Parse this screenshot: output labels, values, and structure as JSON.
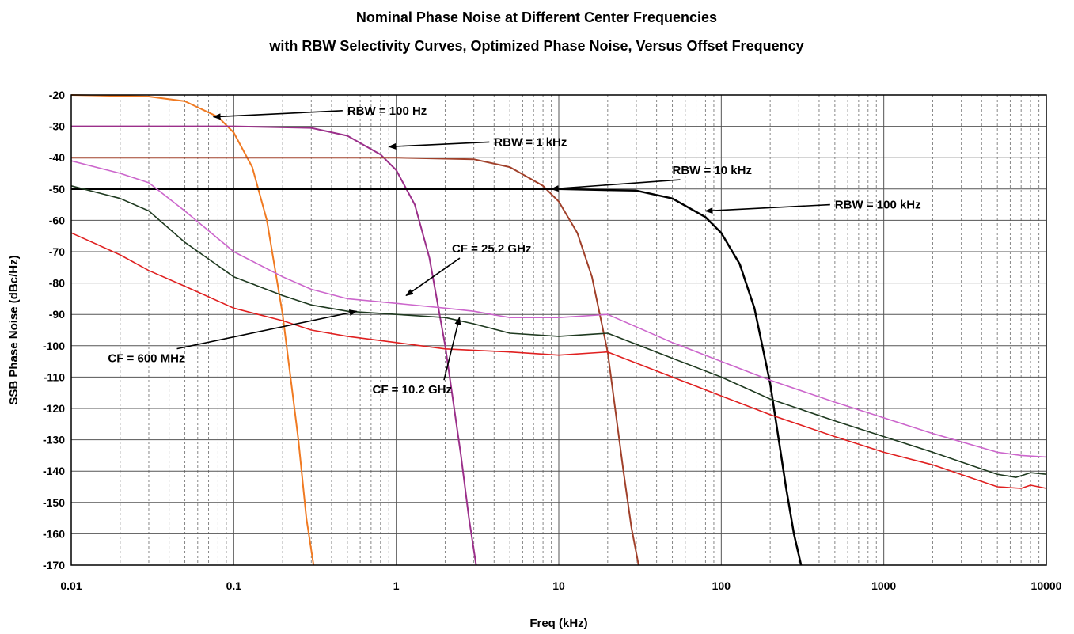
{
  "chart_data": {
    "type": "line",
    "title": "Nominal Phase Noise at Different Center Frequencies",
    "subtitle": "with RBW Selectivity Curves, Optimized Phase Noise, Versus Offset Frequency",
    "xlabel": "Freq (kHz)",
    "ylabel": "SSB Phase Noise (dBc/Hz)",
    "x_scale": "log",
    "xlim": [
      0.01,
      10000
    ],
    "ylim": [
      -170,
      -20
    ],
    "grid": true,
    "x_ticks": [
      "0.01",
      "0.1",
      "1",
      "10",
      "100",
      "1000",
      "10000"
    ],
    "y_ticks": [
      "-20",
      "-30",
      "-40",
      "-50",
      "-60",
      "-70",
      "-80",
      "-90",
      "-100",
      "-110",
      "-120",
      "-130",
      "-140",
      "-150",
      "-160",
      "-170"
    ],
    "colors": {
      "rbw_100hz": "#f07a22",
      "rbw_1khz": "#9b2f8a",
      "rbw_10khz": "#a0402a",
      "rbw_100khz": "#000000",
      "cf_25_2ghz": "#cc66cc",
      "cf_10_2ghz": "#1f3a20",
      "cf_600mhz": "#e02020"
    },
    "series": [
      {
        "x": [
          0.01,
          0.03,
          0.05,
          0.08,
          0.1,
          0.13,
          0.16,
          0.2,
          0.25,
          0.28,
          0.31
        ],
        "y": [
          -20,
          -20.5,
          -22,
          -27,
          -32,
          -43,
          -60,
          -90,
          -130,
          -155,
          -170
        ]
      },
      {
        "x": [
          0.01,
          0.1,
          0.3,
          0.5,
          0.8,
          1.0,
          1.3,
          1.6,
          2.0,
          2.5,
          2.8,
          3.1
        ],
        "y": [
          -30,
          -30,
          -30.5,
          -33,
          -39,
          -44,
          -55,
          -72,
          -100,
          -135,
          -155,
          -170
        ]
      },
      {
        "x": [
          0.01,
          1,
          3,
          5,
          8,
          10,
          13,
          16,
          20,
          25,
          28,
          31
        ],
        "y": [
          -40,
          -40,
          -40.5,
          -43,
          -49,
          -54,
          -64,
          -78,
          -102,
          -140,
          -158,
          -170
        ]
      },
      {
        "x": [
          0.01,
          10,
          30,
          50,
          80,
          100,
          130,
          160,
          200,
          250,
          280,
          310
        ],
        "y": [
          -50,
          -50,
          -50.5,
          -53,
          -59,
          -64,
          -74,
          -88,
          -112,
          -145,
          -160,
          -170
        ]
      },
      {
        "x": [
          0.01,
          0.02,
          0.03,
          0.05,
          0.1,
          0.2,
          0.3,
          0.5,
          1,
          2,
          3,
          5,
          10,
          20,
          50,
          100,
          200,
          500,
          1000,
          2000,
          5000,
          7000,
          10000
        ],
        "y": [
          -41,
          -45,
          -48,
          -57,
          -70,
          -78,
          -82,
          -85,
          -86.5,
          -88,
          -89,
          -91,
          -91,
          -90,
          -99,
          -105,
          -111,
          -118,
          -123,
          -128,
          -134,
          -135,
          -135.5
        ]
      },
      {
        "x": [
          0.01,
          0.02,
          0.03,
          0.05,
          0.1,
          0.2,
          0.3,
          0.5,
          1,
          2,
          3,
          5,
          10,
          20,
          50,
          100,
          200,
          500,
          1000,
          2000,
          5000,
          6500,
          8000,
          10000
        ],
        "y": [
          -49,
          -53,
          -57,
          -67,
          -78,
          -84,
          -87,
          -89,
          -90,
          -91,
          -93,
          -96,
          -97,
          -96,
          -104,
          -110,
          -117,
          -124,
          -129,
          -134,
          -141,
          -142,
          -140.5,
          -141
        ]
      },
      {
        "x": [
          0.01,
          0.02,
          0.03,
          0.05,
          0.1,
          0.2,
          0.3,
          0.5,
          1,
          2,
          5,
          10,
          20,
          50,
          100,
          200,
          500,
          1000,
          2000,
          5000,
          7000,
          8000,
          10000
        ],
        "y": [
          -64,
          -71,
          -76,
          -81,
          -88,
          -92,
          -95,
          -97,
          -99,
          -101,
          -102,
          -103,
          -102,
          -110,
          -116,
          -122,
          -129,
          -134,
          -138,
          -145,
          -145.5,
          -144.5,
          -145.5
        ]
      }
    ],
    "annotations": [
      {
        "text": "RBW = 100 Hz",
        "text_x": 0.5,
        "text_y": -25,
        "arrow_to_x": 0.075,
        "arrow_to_y": -27
      },
      {
        "text": "RBW = 1 kHz",
        "text_x": 4.0,
        "text_y": -35,
        "arrow_to_x": 0.9,
        "arrow_to_y": -36.5
      },
      {
        "text": "RBW = 10 kHz",
        "text_x": 50,
        "text_y": -44,
        "arrow_to_x": 9.0,
        "arrow_to_y": -50
      },
      {
        "text": "RBW = 100 kHz",
        "text_x": 500,
        "text_y": -55,
        "arrow_to_x": 80,
        "arrow_to_y": -57
      },
      {
        "text": "CF = 25.2 GHz",
        "text_x": 2.2,
        "text_y": -69,
        "arrow_to_x": 1.15,
        "arrow_to_y": -84
      },
      {
        "text": "CF = 10.2 GHz",
        "text_x": 2.2,
        "text_y": -114,
        "arrow_to_x": 2.45,
        "arrow_to_y": -91
      },
      {
        "text": "CF = 600 MHz",
        "text_x": 0.05,
        "text_y": -104,
        "arrow_to_x": 0.57,
        "arrow_to_y": -89
      }
    ]
  }
}
